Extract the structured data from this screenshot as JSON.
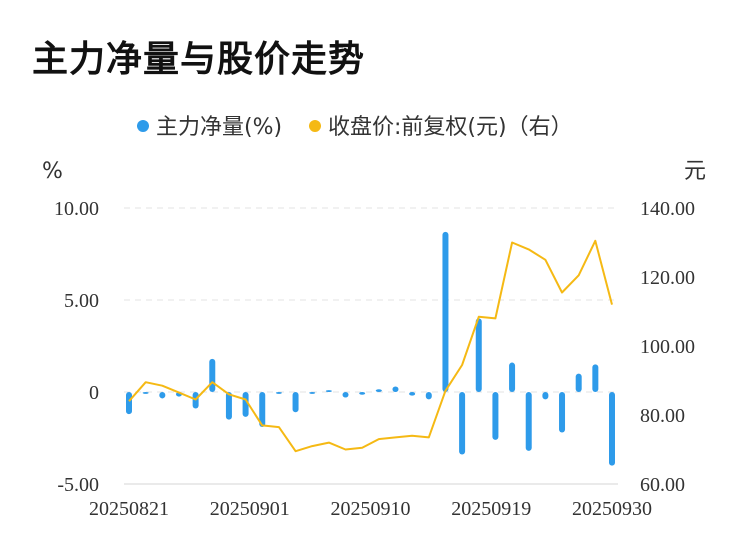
{
  "title": "主力净量与股价走势",
  "chart_data": {
    "type": "bar+line",
    "title": "主力净量与股价走势",
    "left_unit": "%",
    "right_unit": "元",
    "legend_position": "top",
    "series": [
      {
        "name": "主力净量(%)",
        "type": "bar",
        "axis": "left",
        "color": "#2e9bea",
        "values": [
          -1.2,
          -0.1,
          -0.35,
          -0.25,
          -0.9,
          1.8,
          -1.5,
          -1.35,
          -1.9,
          -0.1,
          -1.1,
          -0.1,
          0.1,
          -0.3,
          -0.15,
          0.15,
          0.3,
          -0.2,
          -0.4,
          8.7,
          -3.4,
          4.0,
          -2.6,
          1.6,
          -3.2,
          -0.4,
          -2.2,
          1.0,
          1.5,
          -4.0
        ]
      },
      {
        "name": "收盘价:前复权(元)（右）",
        "type": "line",
        "axis": "right",
        "color": "#f5b914",
        "values": [
          84.0,
          89.5,
          88.5,
          86.5,
          84.5,
          89.5,
          86.0,
          84.5,
          77.0,
          76.5,
          69.5,
          71.0,
          72.0,
          70.0,
          70.5,
          73.0,
          73.5,
          74.0,
          73.5,
          87.0,
          94.5,
          108.5,
          108.0,
          130.0,
          128.0,
          125.0,
          115.5,
          120.5,
          130.5,
          112.0
        ]
      }
    ],
    "x_tick_labels": [
      "20250821",
      "20250901",
      "20250910",
      "20250919",
      "20250930"
    ],
    "y_left": {
      "min": -5,
      "max": 10,
      "ticks": [
        -5,
        0,
        5,
        10
      ],
      "tick_labels": [
        "-5.00",
        "0",
        "5.00",
        "10.00"
      ]
    },
    "y_right": {
      "min": 60,
      "max": 140,
      "ticks": [
        60,
        80,
        100,
        120,
        140
      ],
      "tick_labels": [
        "60.00",
        "80.00",
        "100.00",
        "120.00",
        "140.00"
      ]
    },
    "grid": true
  }
}
